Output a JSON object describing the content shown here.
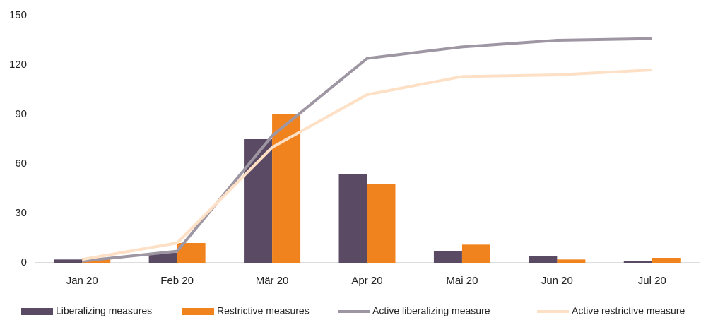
{
  "chart_data": {
    "type": "bar",
    "categories": [
      "Jan 20",
      "Feb 20",
      "Mär 20",
      "Apr 20",
      "Mai 20",
      "Jun 20",
      "Jul 20"
    ],
    "series": [
      {
        "name": "Liberalizing measures",
        "type": "bar",
        "color": "#5a4a63",
        "values": [
          2,
          6,
          75,
          54,
          7,
          4,
          1
        ]
      },
      {
        "name": "Restrictive measures",
        "type": "bar",
        "color": "#f0831e",
        "values": [
          3,
          12,
          90,
          48,
          11,
          2,
          3
        ]
      },
      {
        "name": "Active liberalizing measure",
        "type": "line",
        "color": "#9e97a3",
        "values": [
          1,
          7,
          77,
          124,
          131,
          135,
          136
        ]
      },
      {
        "name": "Active restrictive measure",
        "type": "line",
        "color": "#fde0c5",
        "values": [
          2,
          12,
          70,
          102,
          113,
          114,
          117
        ]
      }
    ],
    "ylim": [
      0,
      150
    ],
    "yticks": [
      0,
      30,
      60,
      90,
      120,
      150
    ],
    "grid": false,
    "legend": "bottom"
  }
}
